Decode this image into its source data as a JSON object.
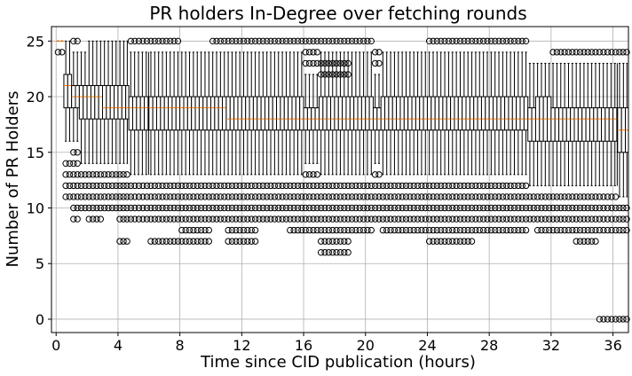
{
  "chart_data": {
    "type": "box",
    "title": "PR holders In-Degree over fetching rounds",
    "xlabel": "Time since CID publication (hours)",
    "ylabel": "Number of PR Holders",
    "xlim": [
      -0.3,
      37.0
    ],
    "ylim": [
      -1.2,
      26.3
    ],
    "xticks": [
      0,
      4,
      8,
      12,
      16,
      20,
      24,
      28,
      32,
      36
    ],
    "yticks": [
      0,
      5,
      10,
      15,
      20,
      25
    ],
    "grid": true,
    "colors": {
      "median": "#ff7f0e",
      "box": "#000000",
      "grid": "#b0b0b0"
    },
    "groups": [
      {
        "start": 0.0,
        "end": 0.5,
        "q1": 25,
        "median": 25,
        "q3": 25,
        "whisker_low": 25,
        "whisker_high": 25,
        "fliers": [
          24
        ]
      },
      {
        "start": 0.5,
        "end": 1.0,
        "q1": 19,
        "median": 21,
        "q3": 22,
        "whisker_low": 16,
        "whisker_high": 25,
        "fliers": [
          14,
          13,
          12,
          11
        ]
      },
      {
        "start": 1.0,
        "end": 1.5,
        "q1": 19,
        "median": 20,
        "q3": 21,
        "whisker_low": 16,
        "whisker_high": 24,
        "fliers": [
          25,
          15,
          14,
          13,
          12,
          11,
          10,
          9
        ]
      },
      {
        "start": 1.5,
        "end": 2.0,
        "q1": 18,
        "median": 20,
        "q3": 21,
        "whisker_low": 14,
        "whisker_high": 24,
        "fliers": [
          13,
          12,
          11,
          10
        ]
      },
      {
        "start": 2.0,
        "end": 3.0,
        "q1": 18,
        "median": 20,
        "q3": 21,
        "whisker_low": 14,
        "whisker_high": 25,
        "fliers": [
          13,
          12,
          11,
          10,
          9
        ]
      },
      {
        "start": 3.0,
        "end": 4.0,
        "q1": 18,
        "median": 19,
        "q3": 21,
        "whisker_low": 14,
        "whisker_high": 25,
        "fliers": [
          13,
          12,
          11,
          10
        ]
      },
      {
        "start": 4.0,
        "end": 4.7,
        "q1": 18,
        "median": 19,
        "q3": 21,
        "whisker_low": 14,
        "whisker_high": 25,
        "fliers": [
          13,
          12,
          11,
          10,
          9,
          7
        ]
      },
      {
        "start": 4.7,
        "end": 6.0,
        "q1": 17,
        "median": 19,
        "q3": 20,
        "whisker_low": 13,
        "whisker_high": 24,
        "fliers": [
          25,
          12,
          11,
          10,
          9
        ]
      },
      {
        "start": 6.0,
        "end": 8.0,
        "q1": 17,
        "median": 19,
        "q3": 20,
        "whisker_low": 13,
        "whisker_high": 24,
        "fliers": [
          25,
          12,
          11,
          10,
          9,
          7
        ]
      },
      {
        "start": 8.0,
        "end": 10.0,
        "q1": 17,
        "median": 19,
        "q3": 20,
        "whisker_low": 13,
        "whisker_high": 24,
        "fliers": [
          12,
          11,
          10,
          9,
          8,
          7
        ]
      },
      {
        "start": 10.0,
        "end": 11.0,
        "q1": 17,
        "median": 19,
        "q3": 20,
        "whisker_low": 13,
        "whisker_high": 24,
        "fliers": [
          25,
          12,
          11,
          10,
          9
        ]
      },
      {
        "start": 11.0,
        "end": 13.0,
        "q1": 17,
        "median": 18,
        "q3": 20,
        "whisker_low": 13,
        "whisker_high": 24,
        "fliers": [
          25,
          12,
          11,
          10,
          9,
          8,
          7
        ]
      },
      {
        "start": 13.0,
        "end": 15.0,
        "q1": 17,
        "median": 18,
        "q3": 20,
        "whisker_low": 13,
        "whisker_high": 24,
        "fliers": [
          25,
          12,
          11,
          10,
          9
        ]
      },
      {
        "start": 15.0,
        "end": 16.0,
        "q1": 17,
        "median": 18,
        "q3": 20,
        "whisker_low": 13,
        "whisker_high": 24,
        "fliers": [
          25,
          12,
          11,
          10,
          9,
          8
        ]
      },
      {
        "start": 16.0,
        "end": 17.0,
        "q1": 17,
        "median": 18,
        "q3": 19,
        "whisker_low": 14,
        "whisker_high": 22,
        "fliers": [
          25,
          24,
          23,
          13,
          12,
          11,
          10,
          9,
          8
        ]
      },
      {
        "start": 17.0,
        "end": 19.0,
        "q1": 17,
        "median": 18,
        "q3": 20,
        "whisker_low": 13,
        "whisker_high": 24,
        "fliers": [
          25,
          23,
          22,
          12,
          11,
          10,
          9,
          8,
          7,
          6
        ]
      },
      {
        "start": 19.0,
        "end": 20.5,
        "q1": 17,
        "median": 18,
        "q3": 20,
        "whisker_low": 13,
        "whisker_high": 24,
        "fliers": [
          25,
          12,
          11,
          10,
          9,
          8
        ]
      },
      {
        "start": 20.5,
        "end": 21.0,
        "q1": 17,
        "median": 18,
        "q3": 19,
        "whisker_low": 14,
        "whisker_high": 22,
        "fliers": [
          24,
          23,
          13,
          12,
          11,
          10,
          9
        ]
      },
      {
        "start": 21.0,
        "end": 24.0,
        "q1": 17,
        "median": 18,
        "q3": 20,
        "whisker_low": 13,
        "whisker_high": 24,
        "fliers": [
          12,
          11,
          10,
          9,
          8
        ]
      },
      {
        "start": 24.0,
        "end": 27.0,
        "q1": 17,
        "median": 18,
        "q3": 20,
        "whisker_low": 13,
        "whisker_high": 24,
        "fliers": [
          25,
          12,
          11,
          10,
          9,
          8,
          7
        ]
      },
      {
        "start": 27.0,
        "end": 30.5,
        "q1": 17,
        "median": 18,
        "q3": 20,
        "whisker_low": 13,
        "whisker_high": 24,
        "fliers": [
          25,
          12,
          11,
          10,
          9,
          8
        ]
      },
      {
        "start": 30.5,
        "end": 31.0,
        "q1": 16,
        "median": 18,
        "q3": 19,
        "whisker_low": 12,
        "whisker_high": 23,
        "fliers": [
          11,
          10,
          9
        ]
      },
      {
        "start": 31.0,
        "end": 32.0,
        "q1": 16,
        "median": 18,
        "q3": 20,
        "whisker_low": 12,
        "whisker_high": 23,
        "fliers": [
          11,
          10,
          9,
          8
        ]
      },
      {
        "start": 32.0,
        "end": 33.5,
        "q1": 16,
        "median": 18,
        "q3": 19,
        "whisker_low": 12,
        "whisker_high": 23,
        "fliers": [
          24,
          11,
          10,
          9,
          8
        ]
      },
      {
        "start": 33.5,
        "end": 35.0,
        "q1": 16,
        "median": 18,
        "q3": 19,
        "whisker_low": 12,
        "whisker_high": 23,
        "fliers": [
          24,
          11,
          10,
          9,
          8,
          7
        ]
      },
      {
        "start": 35.0,
        "end": 36.3,
        "q1": 16,
        "median": 18,
        "q3": 19,
        "whisker_low": 12,
        "whisker_high": 23,
        "fliers": [
          24,
          11,
          10,
          9,
          8,
          0
        ]
      },
      {
        "start": 36.3,
        "end": 37.0,
        "q1": 15,
        "median": 17,
        "q3": 19,
        "whisker_low": 11,
        "whisker_high": 23,
        "fliers": [
          24,
          10,
          9,
          8,
          0
        ]
      }
    ]
  }
}
